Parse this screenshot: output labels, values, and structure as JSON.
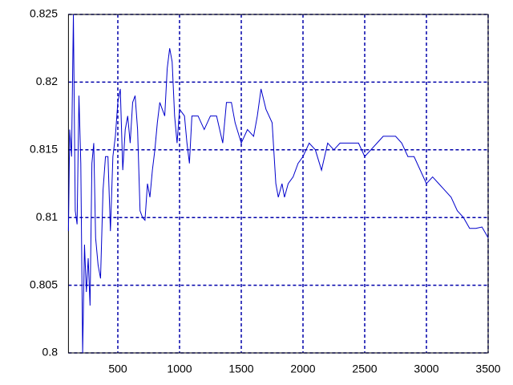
{
  "chart_data": {
    "type": "line",
    "x": [
      100,
      110,
      125,
      140,
      155,
      170,
      185,
      200,
      215,
      230,
      245,
      260,
      275,
      290,
      305,
      320,
      340,
      360,
      380,
      400,
      420,
      440,
      460,
      480,
      500,
      520,
      540,
      560,
      580,
      600,
      620,
      640,
      660,
      680,
      700,
      720,
      740,
      760,
      780,
      800,
      820,
      840,
      860,
      880,
      900,
      920,
      940,
      960,
      980,
      1000,
      1040,
      1060,
      1080,
      1100,
      1150,
      1200,
      1250,
      1300,
      1350,
      1380,
      1420,
      1450,
      1500,
      1550,
      1600,
      1630,
      1660,
      1700,
      1750,
      1780,
      1800,
      1830,
      1850,
      1880,
      1920,
      1960,
      2000,
      2050,
      2100,
      2150,
      2200,
      2250,
      2300,
      2350,
      2400,
      2450,
      2500,
      2550,
      2600,
      2650,
      2700,
      2750,
      2800,
      2850,
      2900,
      2950,
      3000,
      3050,
      3100,
      3150,
      3200,
      3250,
      3300,
      3350,
      3400,
      3450,
      3500
    ],
    "series": [
      {
        "color": "#0000cc",
        "values": [
          0.809,
          0.8165,
          0.8145,
          0.825,
          0.8105,
          0.8095,
          0.819,
          0.814,
          0.8,
          0.808,
          0.8045,
          0.807,
          0.8035,
          0.814,
          0.8155,
          0.8085,
          0.8065,
          0.8055,
          0.812,
          0.8145,
          0.8145,
          0.809,
          0.8145,
          0.816,
          0.8185,
          0.8195,
          0.8135,
          0.8165,
          0.8175,
          0.8155,
          0.8185,
          0.819,
          0.8165,
          0.8105,
          0.81,
          0.8098,
          0.8125,
          0.8115,
          0.8135,
          0.815,
          0.817,
          0.8185,
          0.818,
          0.8175,
          0.821,
          0.8225,
          0.8215,
          0.8175,
          0.8155,
          0.818,
          0.8175,
          0.8155,
          0.814,
          0.8175,
          0.8175,
          0.8165,
          0.8175,
          0.8175,
          0.8155,
          0.8185,
          0.8185,
          0.817,
          0.8155,
          0.8165,
          0.816,
          0.8175,
          0.8195,
          0.818,
          0.817,
          0.8125,
          0.8115,
          0.8125,
          0.8115,
          0.8125,
          0.813,
          0.814,
          0.8145,
          0.8155,
          0.815,
          0.8135,
          0.8155,
          0.815,
          0.8155,
          0.8155,
          0.8155,
          0.8155,
          0.8145,
          0.815,
          0.8155,
          0.816,
          0.816,
          0.816,
          0.8155,
          0.8145,
          0.8145,
          0.8135,
          0.8125,
          0.813,
          0.8125,
          0.812,
          0.8115,
          0.8105,
          0.81,
          0.8092,
          0.8092,
          0.8093,
          0.8085
        ]
      }
    ],
    "xlim": [
      100,
      3500
    ],
    "ylim": [
      0.8,
      0.825
    ],
    "xticks": [
      500,
      1000,
      1500,
      2000,
      2500,
      3000,
      3500
    ],
    "yticks": [
      0.8,
      0.805,
      0.81,
      0.815,
      0.82,
      0.825
    ],
    "grid": true,
    "grid_color": "#0000aa"
  }
}
